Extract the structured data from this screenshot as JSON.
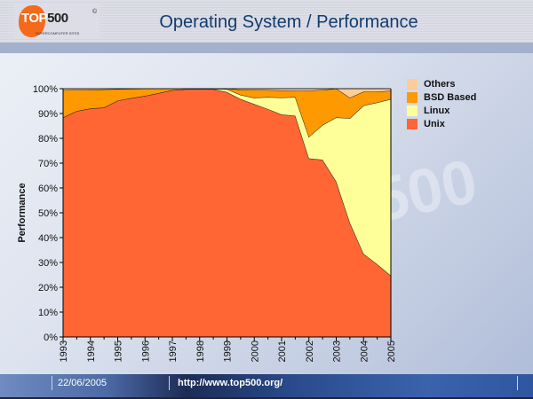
{
  "header": {
    "title": "Operating System / Performance",
    "logo_text": "TOP500",
    "logo_sub": "SUPERCOMPUTER SITES"
  },
  "footer": {
    "date": "22/06/2005",
    "url": "http://www.top500.org/"
  },
  "chart_data": {
    "type": "area",
    "stacked": true,
    "title": "Operating System / Performance",
    "xlabel": "",
    "ylabel": "Performance",
    "ylim": [
      0,
      100
    ],
    "y_ticks": [
      "0%",
      "10%",
      "20%",
      "30%",
      "40%",
      "50%",
      "60%",
      "70%",
      "80%",
      "90%",
      "100%"
    ],
    "x_ticks": [
      "1993",
      "1994",
      "1995",
      "1996",
      "1997",
      "1998",
      "1999",
      "2000",
      "2001",
      "2002",
      "2003",
      "2004",
      "2005"
    ],
    "x": [
      1993,
      1993.5,
      1994,
      1994.5,
      1995,
      1995.5,
      1996,
      1996.5,
      1997,
      1997.5,
      1998,
      1998.5,
      1999,
      1999.5,
      2000,
      2000.5,
      2001,
      2001.5,
      2002,
      2002.5,
      2003,
      2003.5,
      2004,
      2004.5,
      2005
    ],
    "legend_position": "right",
    "series": [
      {
        "name": "Unix",
        "color": "#ff6633",
        "values": [
          88.4,
          91,
          92,
          92.4,
          95.2,
          96.2,
          97.1,
          98.2,
          99.4,
          99.8,
          99.8,
          99.8,
          98.6,
          95.8,
          93.8,
          91.8,
          89.6,
          89.1,
          71.9,
          71.4,
          62.6,
          46,
          33.5,
          29.3,
          24.7
        ]
      },
      {
        "name": "Linux",
        "color": "#ffff99",
        "values": [
          0,
          0,
          0,
          0,
          0,
          0,
          0,
          0,
          0,
          0,
          0,
          0.1,
          1.2,
          1.7,
          2.5,
          4.8,
          6.8,
          7.5,
          8.7,
          14,
          25.8,
          42.1,
          59.7,
          65.1,
          71.1
        ]
      },
      {
        "name": "BSD Based",
        "color": "#ff9900",
        "values": [
          11,
          8.5,
          7.6,
          7.3,
          4.6,
          3.7,
          2.9,
          1.8,
          0.6,
          0.2,
          0.2,
          0.1,
          0.2,
          2.1,
          3.2,
          2.8,
          2.9,
          2.6,
          18.6,
          14.1,
          11.6,
          8.3,
          5.6,
          4.4,
          3.4
        ]
      },
      {
        "name": "Others",
        "color": "#ffcc99",
        "values": [
          0.6,
          0.5,
          0.4,
          0.3,
          0.2,
          0.1,
          0,
          0,
          0,
          0,
          0,
          0,
          0,
          0.4,
          0.5,
          0.6,
          0.7,
          0.8,
          0.8,
          0.5,
          0,
          3.6,
          1.2,
          1.2,
          0.8
        ]
      }
    ],
    "legend_order": [
      "Others",
      "BSD Based",
      "Linux",
      "Unix"
    ]
  }
}
